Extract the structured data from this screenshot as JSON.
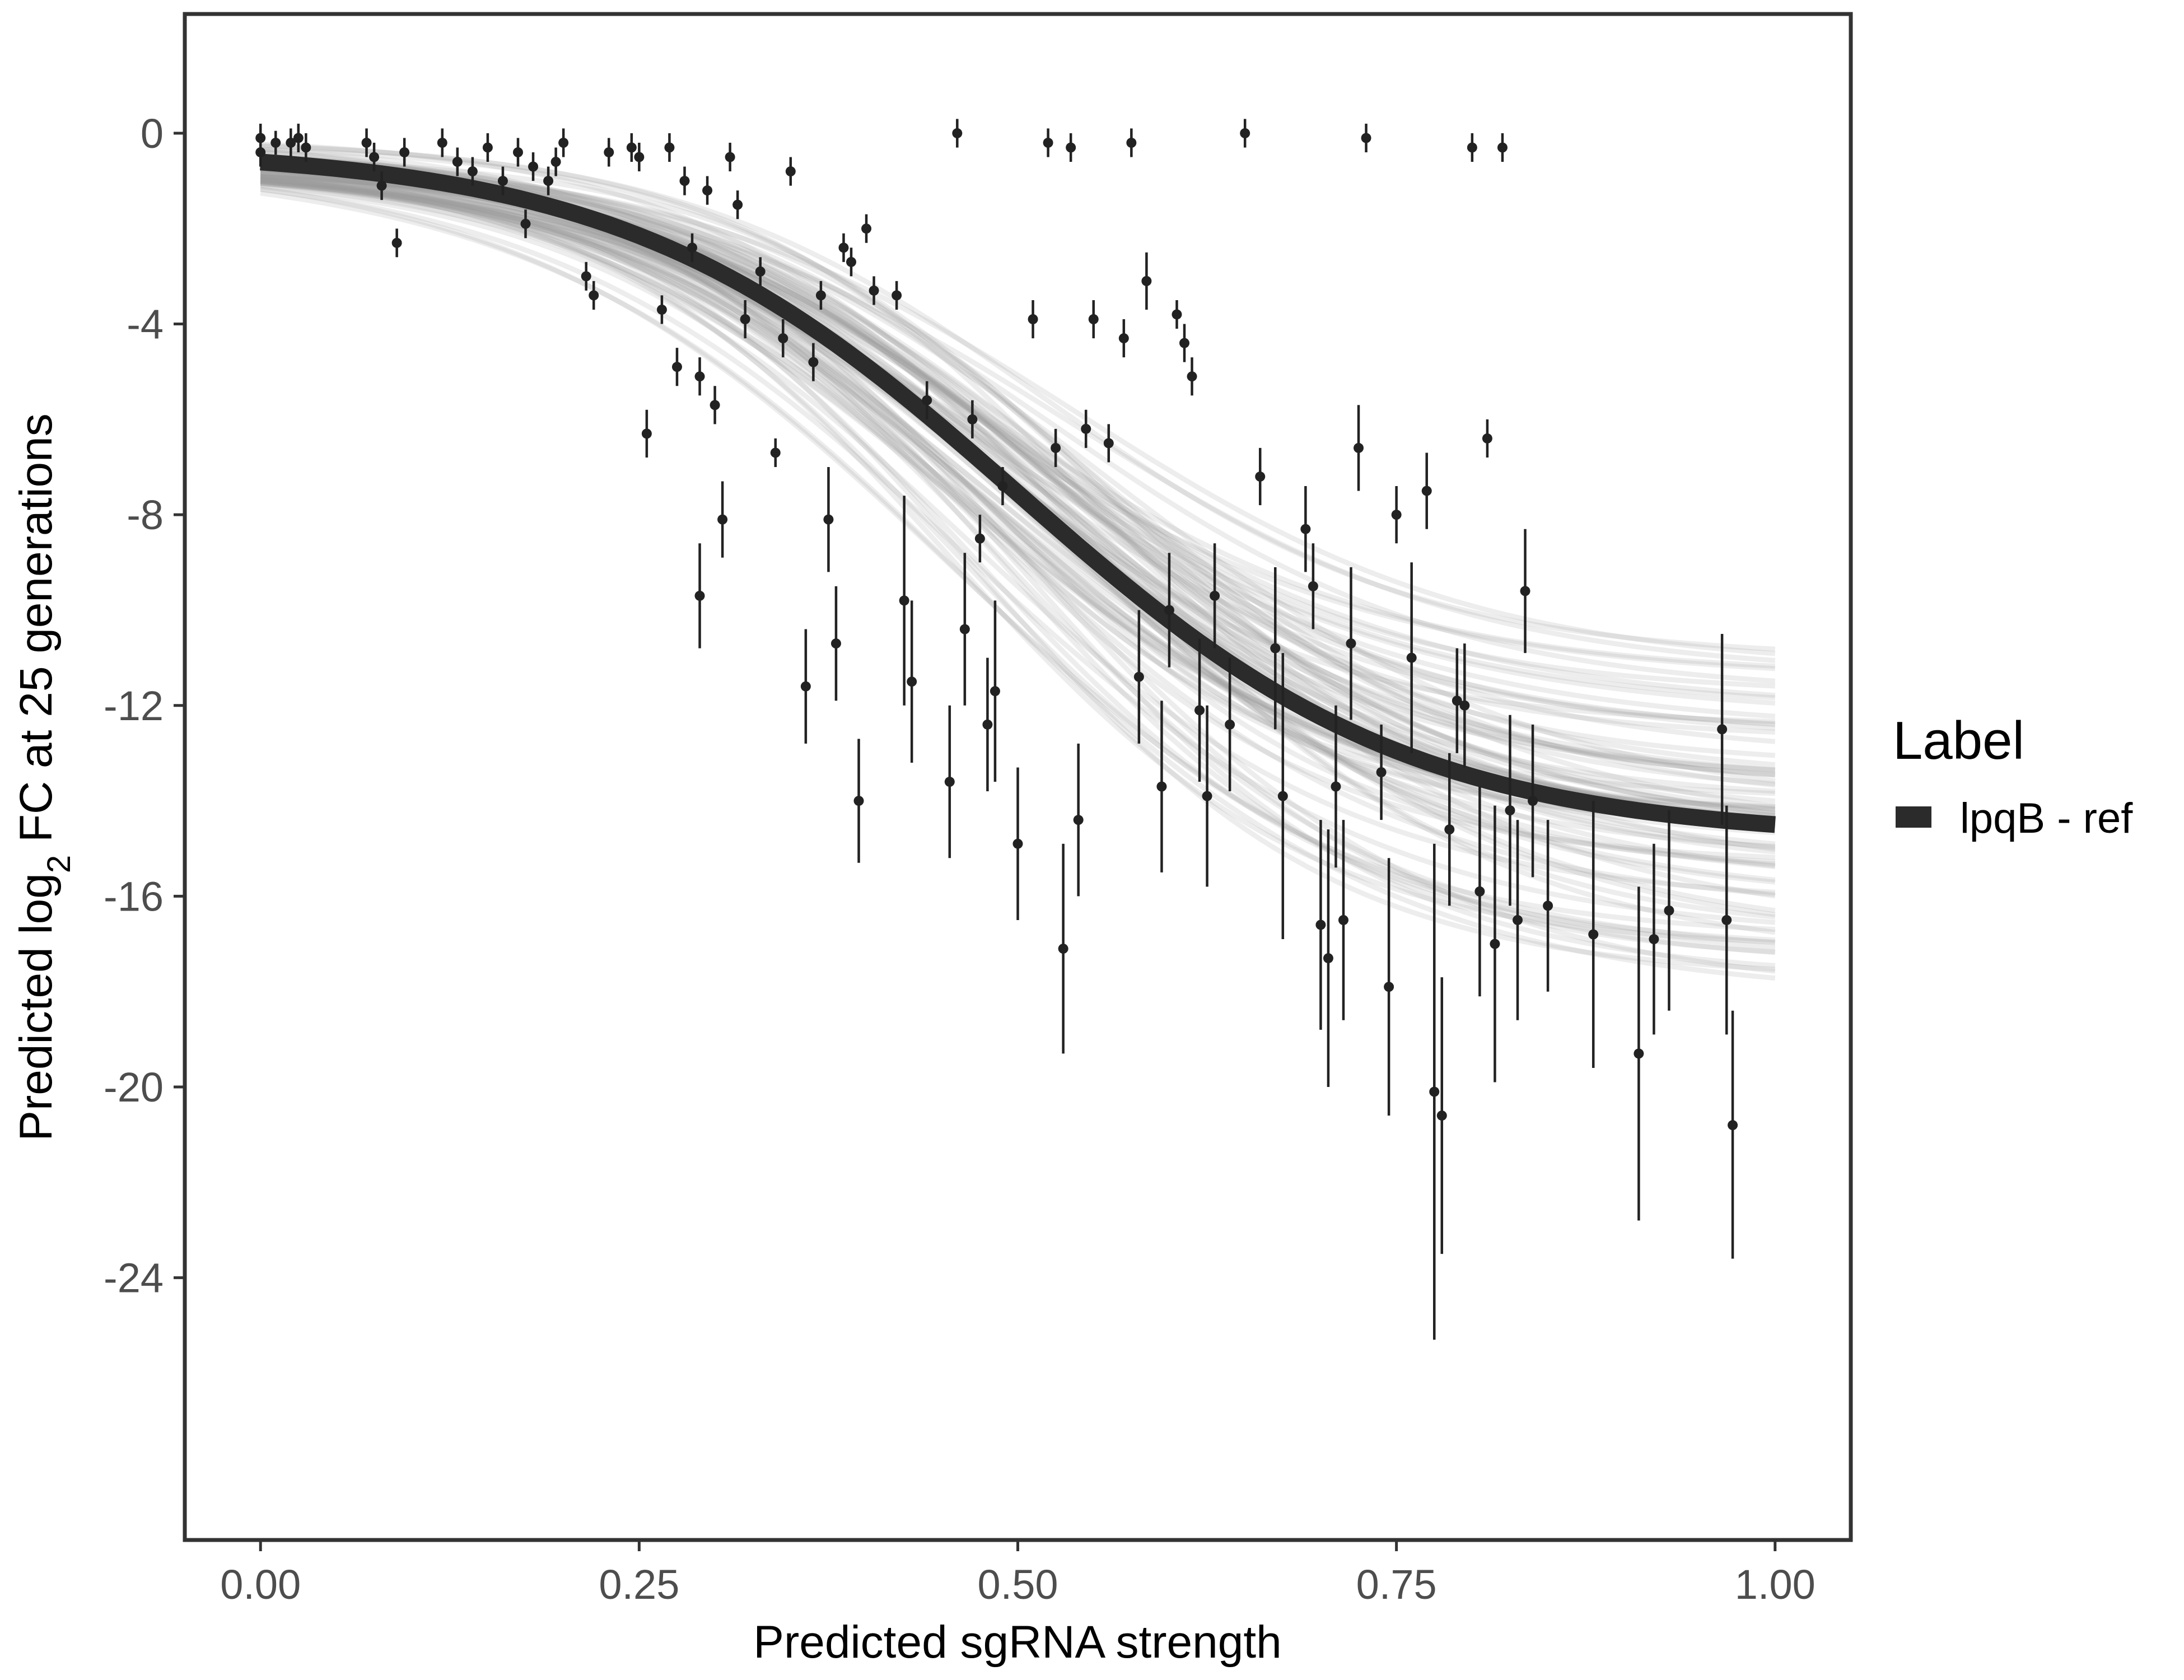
{
  "chart_data": {
    "type": "scatter",
    "title": "",
    "xlabel": "Predicted sgRNA strength",
    "ylabel": {
      "prefix": "Predicted  log",
      "subscript": "2",
      "suffix": " FC at 25 generations"
    },
    "xlim": [
      -0.05,
      1.05
    ],
    "ylim": [
      -29.5,
      2.5
    ],
    "x_ticks": [
      0,
      0.25,
      0.5,
      0.75,
      1
    ],
    "x_tick_labels": [
      "0.00",
      "0.25",
      "0.50",
      "0.75",
      "1.00"
    ],
    "y_ticks": [
      0,
      -4,
      -8,
      -12,
      -16,
      -20,
      -24
    ],
    "y_tick_labels": [
      "0",
      "-4",
      "-8",
      "-12",
      "-16",
      "-20",
      "-24"
    ],
    "grid": false,
    "legend": {
      "title": "Label",
      "position": "right",
      "entries": [
        {
          "label": "lpqB - ref",
          "color": "#2b2b2b"
        }
      ]
    },
    "fit_curve": {
      "name": "lpqB - ref",
      "model": "logistic",
      "top": -0.3,
      "bottom": -14.8,
      "midpoint": 0.5,
      "scale": 0.13,
      "color": "#2b2b2b"
    },
    "posterior_band": {
      "color": "#999999",
      "top_range": [
        -0.05,
        -0.75
      ],
      "bottom_range": [
        -11.0,
        -18.5
      ],
      "midpoint_range": [
        0.45,
        0.56
      ],
      "scale_range": [
        0.115,
        0.145
      ],
      "draws": 90
    },
    "points_header": [
      "x",
      "y",
      "err_low",
      "err_high"
    ],
    "points": [
      [
        0.0,
        -0.1,
        -0.4,
        0.2
      ],
      [
        0.0,
        -0.4,
        -0.7,
        -0.1
      ],
      [
        0.01,
        -0.2,
        -0.45,
        0.05
      ],
      [
        0.02,
        -0.2,
        -0.5,
        0.1
      ],
      [
        0.025,
        -0.1,
        -0.4,
        0.2
      ],
      [
        0.03,
        -0.3,
        -0.6,
        0.0
      ],
      [
        0.07,
        -0.2,
        -0.5,
        0.1
      ],
      [
        0.075,
        -0.5,
        -0.8,
        -0.2
      ],
      [
        0.08,
        -1.1,
        -1.4,
        -0.8
      ],
      [
        0.09,
        -2.3,
        -2.6,
        -2.0
      ],
      [
        0.095,
        -0.4,
        -0.7,
        -0.1
      ],
      [
        0.12,
        -0.2,
        -0.5,
        0.1
      ],
      [
        0.13,
        -0.6,
        -0.9,
        -0.3
      ],
      [
        0.14,
        -0.8,
        -1.1,
        -0.5
      ],
      [
        0.15,
        -0.3,
        -0.6,
        0.0
      ],
      [
        0.16,
        -1.0,
        -1.3,
        -0.7
      ],
      [
        0.17,
        -0.4,
        -0.7,
        -0.1
      ],
      [
        0.175,
        -1.9,
        -2.2,
        -1.6
      ],
      [
        0.18,
        -0.7,
        -1.0,
        -0.4
      ],
      [
        0.19,
        -1.0,
        -1.3,
        -0.7
      ],
      [
        0.195,
        -0.6,
        -0.9,
        -0.3
      ],
      [
        0.2,
        -0.2,
        -0.5,
        0.1
      ],
      [
        0.215,
        -3.0,
        -3.3,
        -2.7
      ],
      [
        0.22,
        -3.4,
        -3.7,
        -3.1
      ],
      [
        0.23,
        -0.4,
        -0.7,
        -0.1
      ],
      [
        0.245,
        -0.3,
        -0.6,
        0.0
      ],
      [
        0.25,
        -0.5,
        -0.8,
        -0.2
      ],
      [
        0.255,
        -6.3,
        -6.8,
        -5.8
      ],
      [
        0.265,
        -3.7,
        -4.0,
        -3.4
      ],
      [
        0.27,
        -0.3,
        -0.6,
        0.0
      ],
      [
        0.275,
        -4.9,
        -5.3,
        -4.5
      ],
      [
        0.28,
        -1.0,
        -1.3,
        -0.7
      ],
      [
        0.285,
        -2.4,
        -2.7,
        -2.1
      ],
      [
        0.29,
        -5.1,
        -5.5,
        -4.7
      ],
      [
        0.29,
        -9.7,
        -10.8,
        -8.6
      ],
      [
        0.295,
        -1.2,
        -1.5,
        -0.9
      ],
      [
        0.3,
        -5.7,
        -6.1,
        -5.3
      ],
      [
        0.305,
        -8.1,
        -8.9,
        -7.3
      ],
      [
        0.31,
        -0.5,
        -0.8,
        -0.2
      ],
      [
        0.315,
        -1.5,
        -1.8,
        -1.2
      ],
      [
        0.32,
        -3.9,
        -4.3,
        -3.5
      ],
      [
        0.33,
        -2.9,
        -3.2,
        -2.6
      ],
      [
        0.34,
        -6.7,
        -7.0,
        -6.4
      ],
      [
        0.345,
        -4.3,
        -4.7,
        -3.9
      ],
      [
        0.35,
        -0.8,
        -1.1,
        -0.5
      ],
      [
        0.36,
        -11.6,
        -12.8,
        -10.4
      ],
      [
        0.365,
        -4.8,
        -5.2,
        -4.4
      ],
      [
        0.37,
        -3.4,
        -3.7,
        -3.1
      ],
      [
        0.375,
        -8.1,
        -9.2,
        -7.0
      ],
      [
        0.38,
        -10.7,
        -11.9,
        -9.5
      ],
      [
        0.385,
        -2.4,
        -2.7,
        -2.1
      ],
      [
        0.39,
        -2.7,
        -3.0,
        -2.4
      ],
      [
        0.395,
        -14.0,
        -15.3,
        -12.7
      ],
      [
        0.4,
        -2.0,
        -2.3,
        -1.7
      ],
      [
        0.405,
        -3.3,
        -3.6,
        -3.0
      ],
      [
        0.42,
        -3.4,
        -3.7,
        -3.1
      ],
      [
        0.425,
        -9.8,
        -12.0,
        -7.6
      ],
      [
        0.43,
        -11.5,
        -13.2,
        -9.8
      ],
      [
        0.44,
        -5.6,
        -6.0,
        -5.2
      ],
      [
        0.455,
        -13.6,
        -15.2,
        -12.0
      ],
      [
        0.46,
        0.0,
        -0.3,
        0.3
      ],
      [
        0.465,
        -10.4,
        -12.0,
        -8.8
      ],
      [
        0.47,
        -6.0,
        -6.4,
        -5.6
      ],
      [
        0.475,
        -8.5,
        -9.0,
        -8.0
      ],
      [
        0.48,
        -12.4,
        -13.8,
        -11.0
      ],
      [
        0.485,
        -11.7,
        -13.6,
        -9.8
      ],
      [
        0.49,
        -7.4,
        -7.8,
        -7.0
      ],
      [
        0.5,
        -14.9,
        -16.5,
        -13.3
      ],
      [
        0.51,
        -3.9,
        -4.3,
        -3.5
      ],
      [
        0.52,
        -0.2,
        -0.5,
        0.1
      ],
      [
        0.525,
        -6.6,
        -7.0,
        -6.2
      ],
      [
        0.53,
        -17.1,
        -19.3,
        -14.9
      ],
      [
        0.535,
        -0.3,
        -0.6,
        0.0
      ],
      [
        0.54,
        -14.4,
        -16.0,
        -12.8
      ],
      [
        0.545,
        -6.2,
        -6.6,
        -5.8
      ],
      [
        0.55,
        -3.9,
        -4.3,
        -3.5
      ],
      [
        0.56,
        -6.5,
        -6.9,
        -6.1
      ],
      [
        0.57,
        -4.3,
        -4.7,
        -3.9
      ],
      [
        0.575,
        -0.2,
        -0.5,
        0.1
      ],
      [
        0.58,
        -11.4,
        -12.8,
        -10.0
      ],
      [
        0.585,
        -3.1,
        -3.7,
        -2.5
      ],
      [
        0.595,
        -13.7,
        -15.5,
        -11.9
      ],
      [
        0.6,
        -10.0,
        -11.2,
        -8.8
      ],
      [
        0.605,
        -3.8,
        -4.1,
        -3.5
      ],
      [
        0.61,
        -4.4,
        -4.8,
        -4.0
      ],
      [
        0.615,
        -5.1,
        -5.5,
        -4.7
      ],
      [
        0.62,
        -12.1,
        -13.6,
        -10.6
      ],
      [
        0.625,
        -13.9,
        -15.8,
        -12.0
      ],
      [
        0.63,
        -9.7,
        -10.8,
        -8.6
      ],
      [
        0.64,
        -12.4,
        -13.8,
        -11.0
      ],
      [
        0.65,
        0.0,
        -0.3,
        0.3
      ],
      [
        0.66,
        -7.2,
        -7.8,
        -6.6
      ],
      [
        0.67,
        -10.8,
        -12.5,
        -9.1
      ],
      [
        0.675,
        -13.9,
        -16.9,
        -10.9
      ],
      [
        0.69,
        -8.3,
        -9.2,
        -7.4
      ],
      [
        0.695,
        -9.5,
        -10.4,
        -8.6
      ],
      [
        0.7,
        -16.6,
        -18.8,
        -14.4
      ],
      [
        0.705,
        -17.3,
        -20.0,
        -14.6
      ],
      [
        0.71,
        -13.7,
        -15.4,
        -12.0
      ],
      [
        0.715,
        -16.5,
        -18.6,
        -14.4
      ],
      [
        0.72,
        -10.7,
        -12.3,
        -9.1
      ],
      [
        0.725,
        -6.6,
        -7.5,
        -5.7
      ],
      [
        0.73,
        -0.1,
        -0.4,
        0.2
      ],
      [
        0.74,
        -13.4,
        -14.4,
        -12.4
      ],
      [
        0.745,
        -17.9,
        -20.6,
        -15.2
      ],
      [
        0.75,
        -8.0,
        -8.6,
        -7.4
      ],
      [
        0.76,
        -11.0,
        -13.0,
        -9.0
      ],
      [
        0.77,
        -7.5,
        -8.3,
        -6.7
      ],
      [
        0.775,
        -20.1,
        -25.3,
        -14.9
      ],
      [
        0.78,
        -20.6,
        -23.5,
        -17.7
      ],
      [
        0.785,
        -14.6,
        -16.2,
        -13.0
      ],
      [
        0.79,
        -11.9,
        -13.0,
        -10.8
      ],
      [
        0.795,
        -12.0,
        -13.3,
        -10.7
      ],
      [
        0.8,
        -0.3,
        -0.6,
        0.0
      ],
      [
        0.805,
        -15.9,
        -18.1,
        -13.7
      ],
      [
        0.81,
        -6.4,
        -6.8,
        -6.0
      ],
      [
        0.815,
        -17.0,
        -19.9,
        -14.1
      ],
      [
        0.82,
        -0.3,
        -0.6,
        0.0
      ],
      [
        0.825,
        -14.2,
        -16.2,
        -12.2
      ],
      [
        0.83,
        -16.5,
        -18.6,
        -14.4
      ],
      [
        0.835,
        -9.6,
        -10.9,
        -8.3
      ],
      [
        0.84,
        -14.0,
        -15.6,
        -12.4
      ],
      [
        0.85,
        -16.2,
        -18.0,
        -14.4
      ],
      [
        0.88,
        -16.8,
        -19.6,
        -14.0
      ],
      [
        0.91,
        -19.3,
        -22.8,
        -15.8
      ],
      [
        0.92,
        -16.9,
        -18.9,
        -14.9
      ],
      [
        0.93,
        -16.3,
        -18.4,
        -14.2
      ],
      [
        0.965,
        -12.5,
        -14.5,
        -10.5
      ],
      [
        0.968,
        -16.5,
        -18.9,
        -14.1
      ],
      [
        0.972,
        -20.8,
        -23.6,
        -18.4
      ]
    ]
  }
}
